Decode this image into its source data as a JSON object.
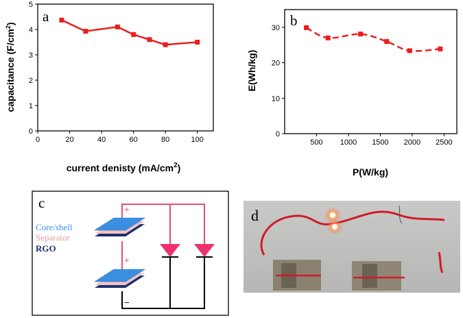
{
  "chart_data": [
    {
      "panel": "a",
      "type": "line",
      "title": "",
      "xlabel": "current denisty (mA/cm",
      "xlabel_sup": "2",
      "xlabel_end": ")",
      "ylabel": "capacitance (F/cm",
      "ylabel_sup": "2",
      "ylabel_end": ")",
      "x": [
        15,
        30,
        50,
        60,
        70,
        80,
        100
      ],
      "y": [
        4.37,
        3.93,
        4.1,
        3.8,
        3.6,
        3.4,
        3.5
      ],
      "xlim": [
        0,
        110
      ],
      "ylim": [
        0,
        5
      ],
      "xticks": [
        0,
        20,
        40,
        60,
        80,
        100
      ],
      "yticks": [
        0,
        1,
        2,
        3,
        4,
        5
      ],
      "line_style": "solid",
      "color": "#ee1c1c"
    },
    {
      "panel": "b",
      "type": "line",
      "title": "",
      "xlabel": "P(W/kg)",
      "ylabel": "E(Wh/kg)",
      "x": [
        340,
        680,
        1190,
        1600,
        1960,
        2440
      ],
      "y": [
        29.9,
        27.0,
        28.1,
        26.0,
        23.4,
        23.9
      ],
      "xlim": [
        0,
        2700
      ],
      "ylim": [
        0,
        35
      ],
      "xticks": [
        500,
        1000,
        1500,
        2000,
        2500
      ],
      "yticks": [
        0,
        10,
        20,
        30
      ],
      "line_style": "dashed",
      "color": "#ee1c1c"
    }
  ],
  "panel_c": {
    "label": "c",
    "legend": [
      "Core/shell",
      "Separator",
      "RGO"
    ],
    "plus_sign": "+",
    "minus_sign": "−"
  },
  "panel_d": {
    "label": "d"
  },
  "colors": {
    "line": "#ee1c1c",
    "wire": "#e0506c",
    "core_shell": "#3b8fe0",
    "separator": "#e0a0a0",
    "rgo": "#1a2f6e"
  }
}
